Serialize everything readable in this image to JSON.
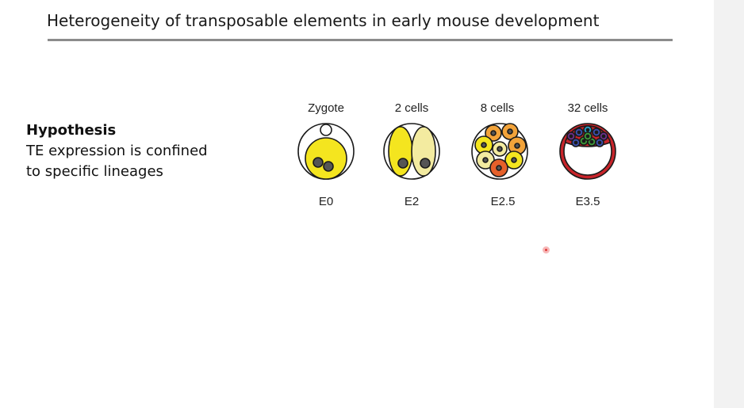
{
  "slide": {
    "title": "Heterogeneity of transposable elements in early mouse development"
  },
  "hypothesis": {
    "heading": "Hypothesis",
    "line1": "TE expression is confined",
    "line2": "to specific lineages"
  },
  "stages": [
    {
      "label": "Zygote",
      "day": "E0"
    },
    {
      "label": "2 cells",
      "day": "E2"
    },
    {
      "label": "8 cells",
      "day": "E2.5"
    },
    {
      "label": "32 cells",
      "day": "E3.5"
    }
  ],
  "colors": {
    "outline": "#1a1a1a",
    "yellow": "#f4e51f",
    "pale_yellow": "#f3eba0",
    "orange": "#f2a33a",
    "dark_orange": "#e5602a",
    "nucleus": "#555555",
    "red": "#c8242a",
    "blue": "#3a4fb0",
    "green": "#3d9a3a",
    "teal": "#2aa0c8",
    "purple": "#6a2f8a",
    "rule": "#8c8c8c"
  }
}
